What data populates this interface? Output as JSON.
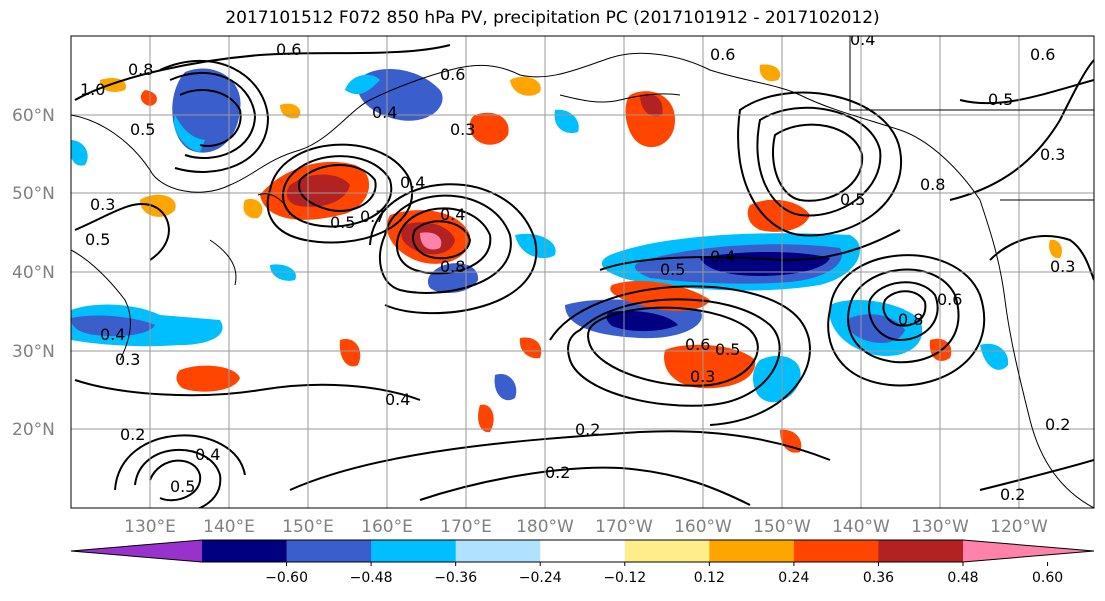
{
  "title": "2017101512 F072 850 hPa PV, precipitation PC (2017101912 - 2017102012)",
  "lat_ticks": [
    "60°N",
    "50°N",
    "40°N",
    "30°N",
    "20°N"
  ],
  "lon_ticks": [
    "130°E",
    "140°E",
    "150°E",
    "160°E",
    "170°E",
    "180°W",
    "170°W",
    "160°W",
    "150°W",
    "140°W",
    "130°W",
    "120°W"
  ],
  "colorbar": {
    "levels": [
      "−0.60",
      "−0.48",
      "−0.36",
      "−0.24",
      "−0.12",
      "0.12",
      "0.24",
      "0.36",
      "0.48",
      "0.60"
    ],
    "colors": [
      "#9932cc",
      "#000080",
      "#3a5fcd",
      "#00bfff",
      "#b0e2ff",
      "#ffffff",
      "#ffec8b",
      "#ffa500",
      "#ff4500",
      "#b22222",
      "#ff82ab"
    ]
  },
  "contour_labels": [
    "0.6",
    "0.8",
    "1.0",
    "0.5",
    "0.6",
    "0.4",
    "0.3",
    "0.5",
    "0.4",
    "0.3",
    "0.5",
    "0.7",
    "0.4",
    "0.8",
    "0.5",
    "0.4",
    "0.6",
    "0.5",
    "0.3",
    "0.8",
    "0.6",
    "0.4",
    "0.6",
    "0.5",
    "0.8",
    "0.5",
    "0.6",
    "0.3",
    "0.2",
    "0.2",
    "0.4",
    "0.3",
    "0.4",
    "0.4",
    "0.2",
    "0.2",
    "0.2",
    "0.3",
    "0.5"
  ]
}
